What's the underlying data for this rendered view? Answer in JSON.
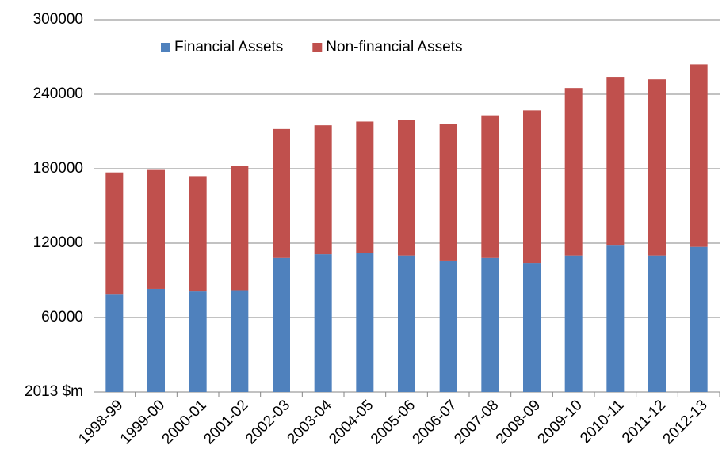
{
  "chart_data": {
    "type": "stacked_bar",
    "categories": [
      "1998-99",
      "1999-00",
      "2000-01",
      "2001-02",
      "2002-03",
      "2003-04",
      "2004-05",
      "2005-06",
      "2006-07",
      "2007-08",
      "2008-09",
      "2009-10",
      "2010-11",
      "2011-12",
      "2012-13"
    ],
    "series": [
      {
        "name": "Financial Assets",
        "color": "#4f81bd",
        "values": [
          79000,
          83000,
          81000,
          82000,
          108000,
          111000,
          112000,
          110000,
          106000,
          108000,
          104000,
          110000,
          118000,
          110000,
          117000
        ]
      },
      {
        "name": "Non-financial Assets",
        "color": "#c0504d",
        "values": [
          98000,
          96000,
          93000,
          100000,
          104000,
          104000,
          106000,
          109000,
          110000,
          115000,
          123000,
          135000,
          136000,
          142000,
          147000
        ]
      }
    ],
    "ylim": [
      0,
      300000
    ],
    "yticks": [
      {
        "value": 0,
        "label": "2013 $m"
      },
      60000,
      120000,
      180000,
      240000,
      300000
    ],
    "grid": true,
    "legend": "top"
  }
}
